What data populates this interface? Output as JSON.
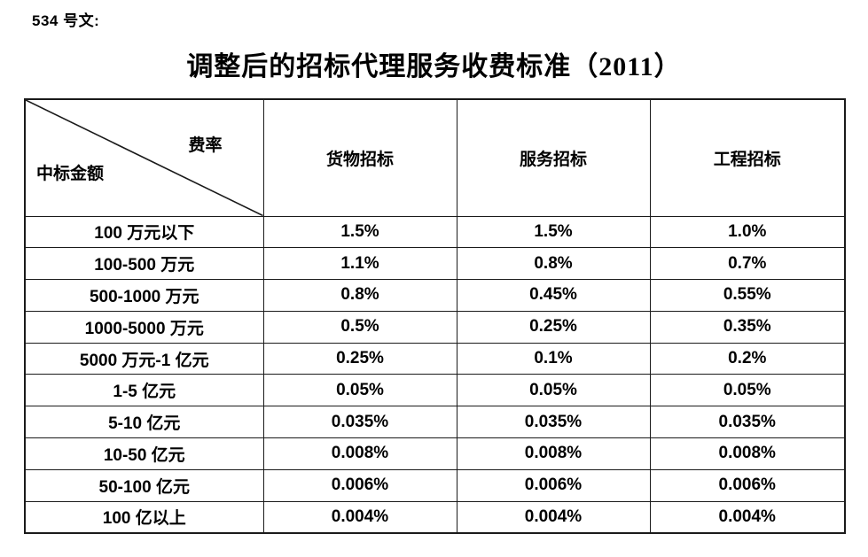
{
  "page": {
    "doc_label": "534 号文:",
    "title": "调整后的招标代理服务收费标准（2011）"
  },
  "table": {
    "corner": {
      "top_right": "费率",
      "bottom_left": "中标金额"
    },
    "columns": [
      "货物招标",
      "服务招标",
      "工程招标"
    ],
    "rows": [
      {
        "label": "100 万元以下",
        "values": [
          "1.5%",
          "1.5%",
          "1.0%"
        ]
      },
      {
        "label": "100-500 万元",
        "values": [
          "1.1%",
          "0.8%",
          "0.7%"
        ]
      },
      {
        "label": "500-1000 万元",
        "values": [
          "0.8%",
          "0.45%",
          "0.55%"
        ]
      },
      {
        "label": "1000-5000 万元",
        "values": [
          "0.5%",
          "0.25%",
          "0.35%"
        ]
      },
      {
        "label": "5000 万元-1 亿元",
        "values": [
          "0.25%",
          "0.1%",
          "0.2%"
        ]
      },
      {
        "label": "1-5 亿元",
        "values": [
          "0.05%",
          "0.05%",
          "0.05%"
        ]
      },
      {
        "label": "5-10 亿元",
        "values": [
          "0.035%",
          "0.035%",
          "0.035%"
        ]
      },
      {
        "label": "10-50 亿元",
        "values": [
          "0.008%",
          "0.008%",
          "0.008%"
        ]
      },
      {
        "label": "50-100 亿元",
        "values": [
          "0.006%",
          "0.006%",
          "0.006%"
        ]
      },
      {
        "label": "100 亿以上",
        "values": [
          "0.004%",
          "0.004%",
          "0.004%"
        ]
      }
    ],
    "border_color": "#1a1a1a",
    "background_color": "#ffffff",
    "text_color": "#000000"
  }
}
